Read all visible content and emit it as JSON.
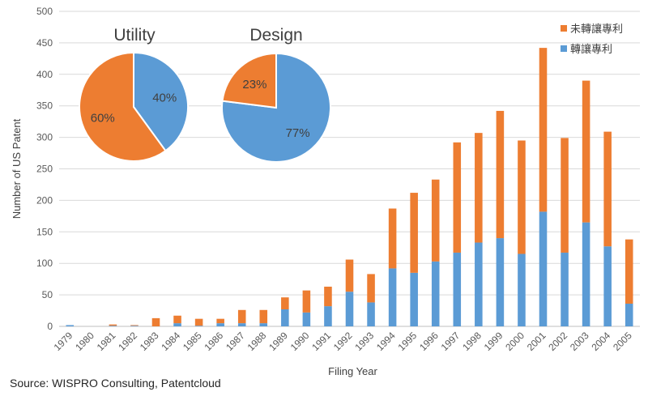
{
  "chart_data": [
    {
      "type": "bar",
      "stacked": true,
      "categories": [
        "1979",
        "1980",
        "1981",
        "1982",
        "1983",
        "1984",
        "1985",
        "1986",
        "1987",
        "1988",
        "1989",
        "1990",
        "1991",
        "1992",
        "1993",
        "1994",
        "1995",
        "1996",
        "1997",
        "1998",
        "1999",
        "2000",
        "2001",
        "2002",
        "2003",
        "2004",
        "2005"
      ],
      "series": [
        {
          "name": "轉讓專利",
          "color": "#5B9BD5",
          "values": [
            2,
            0,
            1,
            1,
            0,
            5,
            1,
            5,
            5,
            5,
            27,
            22,
            32,
            55,
            38,
            92,
            85,
            103,
            117,
            133,
            140,
            115,
            182,
            117,
            165,
            127,
            36
          ]
        },
        {
          "name": "未轉讓專利",
          "color": "#ED7D31",
          "values": [
            0,
            0,
            2,
            1,
            13,
            12,
            11,
            7,
            21,
            21,
            19,
            35,
            31,
            51,
            45,
            95,
            127,
            130,
            175,
            174,
            202,
            180,
            260,
            182,
            225,
            182,
            102
          ]
        }
      ],
      "xlabel": "Filing Year",
      "ylabel": "Number of US Patent",
      "ylim": [
        0,
        500
      ],
      "yticks": [
        0,
        50,
        100,
        150,
        200,
        250,
        300,
        350,
        400,
        450,
        500
      ],
      "grid": true,
      "legend": "top-right"
    },
    {
      "type": "pie",
      "title": "Utility",
      "slices": [
        {
          "label": "40%",
          "value": 40,
          "color": "#5B9BD5"
        },
        {
          "label": "60%",
          "value": 60,
          "color": "#ED7D31"
        }
      ]
    },
    {
      "type": "pie",
      "title": "Design",
      "slices": [
        {
          "label": "77%",
          "value": 77,
          "color": "#5B9BD5"
        },
        {
          "label": "23%",
          "value": 23,
          "color": "#ED7D31"
        }
      ]
    }
  ],
  "source": "Source: WISPRO Consulting, Patentcloud"
}
